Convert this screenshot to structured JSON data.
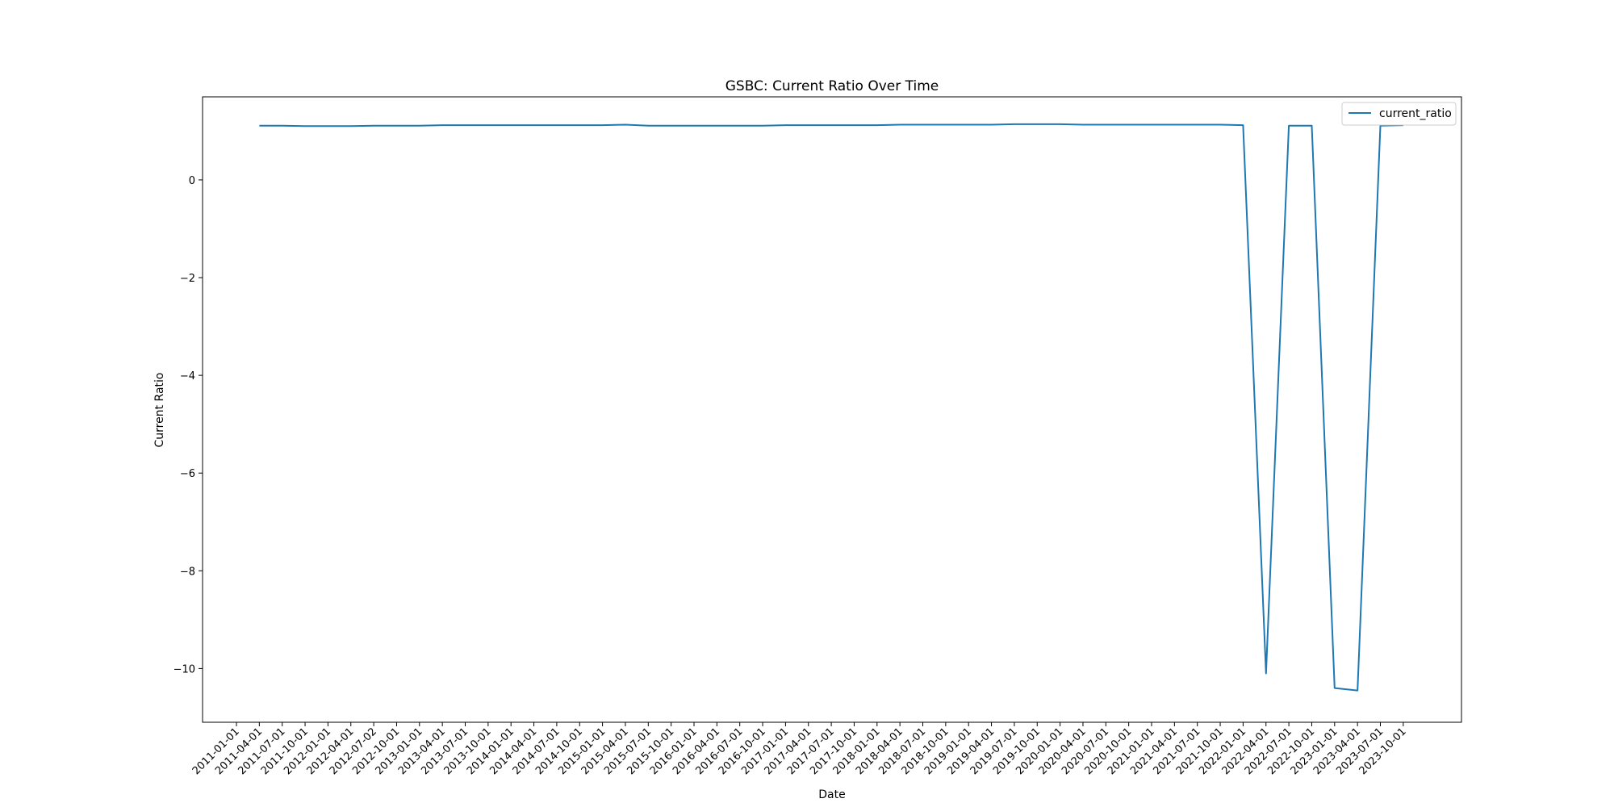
{
  "chart_data": {
    "type": "line",
    "title": "GSBC: Current Ratio Over Time",
    "xlabel": "Date",
    "ylabel": "Current Ratio",
    "x_tick_labels": [
      "2011-01-01",
      "2011-04-01",
      "2011-07-01",
      "2011-10-01",
      "2012-01-01",
      "2012-04-01",
      "2012-07-02",
      "2012-10-01",
      "2013-01-01",
      "2013-04-01",
      "2013-07-01",
      "2013-10-01",
      "2014-01-01",
      "2014-04-01",
      "2014-07-01",
      "2014-10-01",
      "2015-01-01",
      "2015-04-01",
      "2015-07-01",
      "2015-10-01",
      "2016-01-01",
      "2016-04-01",
      "2016-07-01",
      "2016-10-01",
      "2017-01-01",
      "2017-04-01",
      "2017-07-01",
      "2017-10-01",
      "2018-01-01",
      "2018-04-01",
      "2018-07-01",
      "2018-10-01",
      "2019-01-01",
      "2019-04-01",
      "2019-07-01",
      "2019-10-01",
      "2020-01-01",
      "2020-04-01",
      "2020-07-01",
      "2020-10-01",
      "2021-01-01",
      "2021-04-01",
      "2021-07-01",
      "2021-10-01",
      "2022-01-01",
      "2022-04-01",
      "2022-07-01",
      "2022-10-01",
      "2023-01-01",
      "2023-04-01",
      "2023-07-01",
      "2023-10-01"
    ],
    "y_ticks": [
      0,
      -2,
      -4,
      -6,
      -8,
      -10
    ],
    "ylim": [
      -11.1,
      1.7
    ],
    "legend": "top-right",
    "grid": false,
    "color": "#1f77b4",
    "series": [
      {
        "name": "current_ratio",
        "x": [
          "2011-04-01",
          "2011-07-01",
          "2011-10-01",
          "2012-01-01",
          "2012-04-01",
          "2012-07-02",
          "2012-10-01",
          "2013-01-01",
          "2013-04-01",
          "2013-07-01",
          "2013-10-01",
          "2014-01-01",
          "2014-04-01",
          "2014-07-01",
          "2014-10-01",
          "2015-01-01",
          "2015-04-01",
          "2015-07-01",
          "2015-10-01",
          "2016-01-01",
          "2016-04-01",
          "2016-07-01",
          "2016-10-01",
          "2017-01-01",
          "2017-04-01",
          "2017-07-01",
          "2017-10-01",
          "2018-01-01",
          "2018-04-01",
          "2018-07-01",
          "2018-10-01",
          "2019-01-01",
          "2019-04-01",
          "2019-07-01",
          "2019-10-01",
          "2020-01-01",
          "2020-04-01",
          "2020-07-01",
          "2020-10-01",
          "2021-01-01",
          "2021-04-01",
          "2021-07-01",
          "2021-10-01",
          "2022-01-01",
          "2022-04-01",
          "2022-07-01",
          "2022-10-01",
          "2023-01-01",
          "2023-04-01",
          "2023-07-01",
          "2023-10-01"
        ],
        "values": [
          1.11,
          1.11,
          1.1,
          1.1,
          1.1,
          1.11,
          1.11,
          1.11,
          1.12,
          1.12,
          1.12,
          1.12,
          1.12,
          1.12,
          1.12,
          1.12,
          1.13,
          1.11,
          1.11,
          1.11,
          1.11,
          1.11,
          1.11,
          1.12,
          1.12,
          1.12,
          1.12,
          1.12,
          1.13,
          1.13,
          1.13,
          1.13,
          1.13,
          1.14,
          1.14,
          1.14,
          1.13,
          1.13,
          1.13,
          1.13,
          1.13,
          1.13,
          1.13,
          1.12,
          -10.1,
          1.11,
          1.11,
          -10.4,
          -10.45,
          1.11,
          1.12
        ]
      }
    ]
  }
}
